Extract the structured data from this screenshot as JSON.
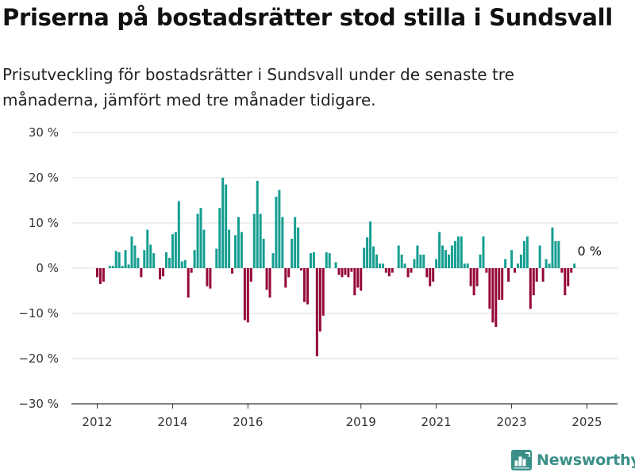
{
  "title": "Priserna på bostadsrätter stod stilla i Sundsvall",
  "subtitle": "Prisutveckling för bostadsrätter i Sundsvall under de senaste tre månaderna, jämfört med tre månader tidigare.",
  "brand": {
    "name": "Newsworthy",
    "icon": "newsworthy-logo-icon"
  },
  "colors": {
    "positive": "#159e91",
    "negative": "#950838",
    "grid": "#dddddd",
    "axis": "#333333"
  },
  "chart_data": {
    "type": "bar",
    "title": "Priserna på bostadsrätter stod stilla i Sundsvall",
    "subtitle": "Prisutveckling för bostadsrätter i Sundsvall under de senaste tre månaderna, jämfört med tre månader tidigare.",
    "xlabel": "",
    "ylabel": "",
    "ylim": [
      -30,
      30
    ],
    "yticks": [
      30,
      20,
      10,
      0,
      -10,
      -20,
      -30
    ],
    "ytick_labels": [
      "30 %",
      "20 %",
      "10 %",
      "0 %",
      "−10 %",
      "−20 %",
      "−30 %"
    ],
    "xticks": [
      {
        "label": "2012",
        "index": 0
      },
      {
        "label": "2014",
        "index": 24
      },
      {
        "label": "2016",
        "index": 48
      },
      {
        "label": "2019",
        "index": 84
      },
      {
        "label": "2021",
        "index": 108
      },
      {
        "label": "2023",
        "index": 132
      },
      {
        "label": "2025",
        "index": 156
      }
    ],
    "x_start": "2012-01",
    "grid": true,
    "legend": "none",
    "annotation": {
      "text": "0 %",
      "index": 155
    },
    "values": [
      -2.0,
      -3.5,
      -3.0,
      0,
      0.5,
      0.5,
      3.8,
      3.5,
      0.5,
      4.0,
      0.8,
      7.0,
      5.0,
      2.3,
      -2.0,
      4.0,
      8.5,
      5.2,
      3.3,
      0,
      -2.5,
      -1.8,
      3.5,
      2.3,
      7.5,
      8.0,
      14.8,
      1.5,
      1.8,
      -6.5,
      -1.0,
      4.0,
      12.0,
      13.3,
      8.5,
      -4.0,
      -4.5,
      0,
      4.3,
      13.3,
      20.0,
      18.5,
      8.5,
      -1.2,
      7.3,
      11.3,
      8.0,
      -11.5,
      -12.0,
      -3.0,
      12.0,
      19.3,
      12.0,
      6.5,
      -4.8,
      -6.5,
      3.3,
      15.8,
      17.3,
      11.3,
      -4.3,
      -2.0,
      6.5,
      11.3,
      9.0,
      -0.5,
      -7.5,
      -8.0,
      3.3,
      3.5,
      -19.5,
      -14.0,
      -10.5,
      3.5,
      3.3,
      0,
      1.3,
      -1.5,
      -2.0,
      -1.5,
      -2.0,
      -0.8,
      -6.0,
      -4.3,
      -5.0,
      4.5,
      6.8,
      10.3,
      4.8,
      3.0,
      1.0,
      1.0,
      -1.0,
      -1.8,
      -1.0,
      0,
      5.0,
      3.0,
      1.0,
      -2.0,
      -1.0,
      2.0,
      5.0,
      3.0,
      3.0,
      -2.0,
      -4.0,
      -3.0,
      2.0,
      8.0,
      5.0,
      4.0,
      3.0,
      5.0,
      6.0,
      7.0,
      7.0,
      1.0,
      1.0,
      -4.0,
      -6.0,
      -4.0,
      3.0,
      7.0,
      -1.0,
      -9.0,
      -12.0,
      -13.0,
      -7.0,
      -7.0,
      2.0,
      -3.0,
      4.0,
      -1.0,
      1.0,
      3.0,
      6.0,
      7.0,
      -9.0,
      -6.0,
      -3.0,
      5.0,
      -3.0,
      2.0,
      1.0,
      9.0,
      6.0,
      6.0,
      -1.0,
      -6.0,
      -4.0,
      -1.0,
      1.0,
      0
    ]
  }
}
